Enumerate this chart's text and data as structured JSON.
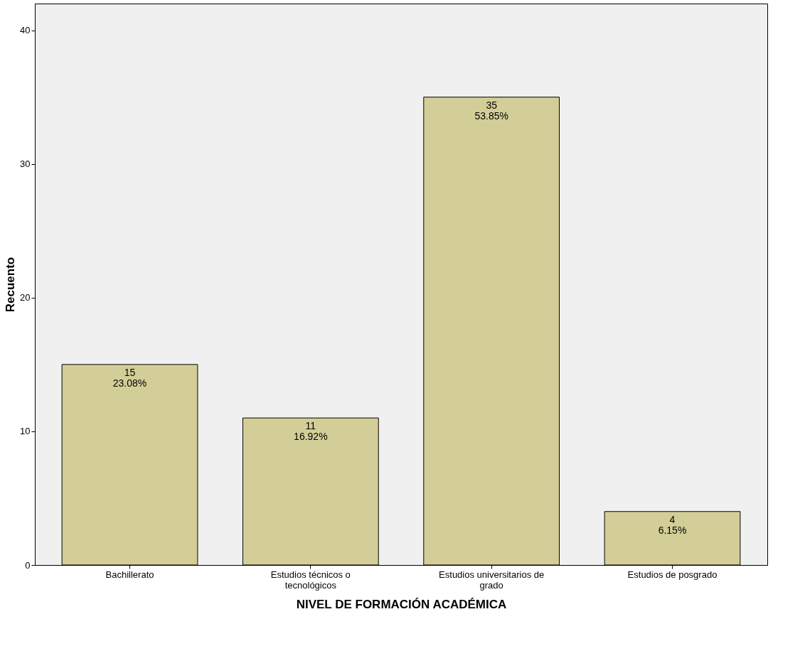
{
  "chart_data": {
    "type": "bar",
    "xlabel": "NIVEL DE FORMACIÓN ACADÉMICA",
    "ylabel": "Recuento",
    "categories": [
      "Bachillerato",
      "Estudios técnicos o tecnológicos",
      "Estudios universitarios de grado",
      "Estudios de posgrado"
    ],
    "values": [
      15,
      11,
      35,
      4
    ],
    "value_labels": [
      "15\n23.08%",
      "11\n16.92%",
      "35\n53.85%",
      "4\n6.15%"
    ],
    "color": "#d3ce97",
    "ylim": [
      0,
      42
    ],
    "yticks": [
      0,
      10,
      20,
      30,
      40
    ],
    "grid": false
  }
}
